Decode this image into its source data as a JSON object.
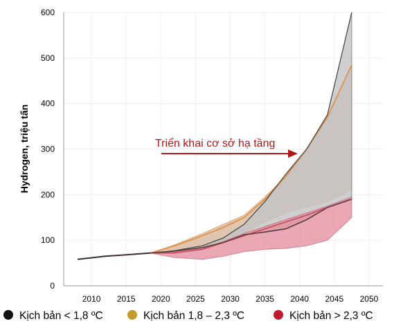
{
  "chart_data": {
    "type": "area",
    "title": "",
    "xlabel": "",
    "ylabel": "Hydrogen, triệu tấn",
    "xlim": [
      2006,
      2052
    ],
    "ylim": [
      0,
      600
    ],
    "x_ticks": [
      "2010",
      "2015",
      "2020",
      "2025",
      "2030",
      "2035",
      "2040",
      "2045",
      "2050"
    ],
    "y_ticks": [
      "0",
      "100",
      "200",
      "300",
      "400",
      "500",
      "600"
    ],
    "grid": true,
    "legend_position": "bottom",
    "annotation": "Triển khai cơ sở hạ tầng",
    "series": [
      {
        "name": "Kịch bản < 1,8 ºC",
        "marker_color": "#111111",
        "fill_color": "#c3c3c5",
        "edge_color": "#555555",
        "upper": [
          [
            2018.5,
            72
          ],
          [
            2022,
            77
          ],
          [
            2026,
            88
          ],
          [
            2029,
            105
          ],
          [
            2032,
            135
          ],
          [
            2035,
            185
          ],
          [
            2038,
            245
          ],
          [
            2041,
            300
          ],
          [
            2044,
            375
          ],
          [
            2047.5,
            600
          ]
        ],
        "lower": [
          [
            2018.5,
            72
          ],
          [
            2022,
            76
          ],
          [
            2026,
            84
          ],
          [
            2029,
            95
          ],
          [
            2032,
            112
          ],
          [
            2035,
            118
          ],
          [
            2038,
            125
          ],
          [
            2041,
            145
          ],
          [
            2044,
            172
          ],
          [
            2047.5,
            190
          ]
        ]
      },
      {
        "name": "Kịch bản 1,8 – 2,3 ºC",
        "marker_color": "#c89a2c",
        "fill_color": "#d8b79c",
        "edge_color": "#e08a3c",
        "central": [
          [
            2018.5,
            72
          ],
          [
            2022,
            88
          ],
          [
            2026,
            110
          ],
          [
            2029,
            128
          ],
          [
            2032,
            150
          ],
          [
            2035,
            190
          ],
          [
            2038,
            240
          ],
          [
            2041,
            300
          ],
          [
            2044,
            370
          ],
          [
            2047.5,
            485
          ]
        ],
        "upper": [
          [
            2018.5,
            72
          ],
          [
            2022,
            90
          ],
          [
            2026,
            115
          ],
          [
            2029,
            135
          ],
          [
            2032,
            155
          ],
          [
            2035,
            195
          ],
          [
            2038,
            240
          ],
          [
            2041,
            300
          ],
          [
            2044,
            370
          ],
          [
            2047.5,
            485
          ]
        ],
        "lower": [
          [
            2018.5,
            72
          ],
          [
            2022,
            77
          ],
          [
            2026,
            87
          ],
          [
            2029,
            98
          ],
          [
            2032,
            115
          ],
          [
            2035,
            140
          ],
          [
            2038,
            160
          ],
          [
            2041,
            172
          ],
          [
            2044,
            185
          ],
          [
            2047.5,
            210
          ]
        ]
      },
      {
        "name": "Kịch bản > 2,3 ºC",
        "marker_color": "#c0182c",
        "fill_color": "#e18b99",
        "edge_color": "#c64a5c",
        "central": [
          [
            2018.5,
            72
          ],
          [
            2022,
            72
          ],
          [
            2026,
            80
          ],
          [
            2029,
            95
          ],
          [
            2032,
            110
          ],
          [
            2035,
            125
          ],
          [
            2038,
            140
          ],
          [
            2041,
            155
          ],
          [
            2044,
            172
          ],
          [
            2047.5,
            190
          ]
        ],
        "upper": [
          [
            2018.5,
            72
          ],
          [
            2022,
            74
          ],
          [
            2026,
            82
          ],
          [
            2029,
            97
          ],
          [
            2032,
            115
          ],
          [
            2035,
            130
          ],
          [
            2038,
            145
          ],
          [
            2041,
            160
          ],
          [
            2044,
            175
          ],
          [
            2047.5,
            195
          ]
        ],
        "lower": [
          [
            2018.5,
            72
          ],
          [
            2022,
            62
          ],
          [
            2026,
            58
          ],
          [
            2029,
            65
          ],
          [
            2032,
            75
          ],
          [
            2035,
            80
          ],
          [
            2038,
            82
          ],
          [
            2041,
            88
          ],
          [
            2044,
            100
          ],
          [
            2047.5,
            150
          ]
        ]
      }
    ],
    "common_history": [
      [
        2008,
        58
      ],
      [
        2012,
        65
      ],
      [
        2015,
        68
      ],
      [
        2018.5,
        72
      ]
    ]
  }
}
